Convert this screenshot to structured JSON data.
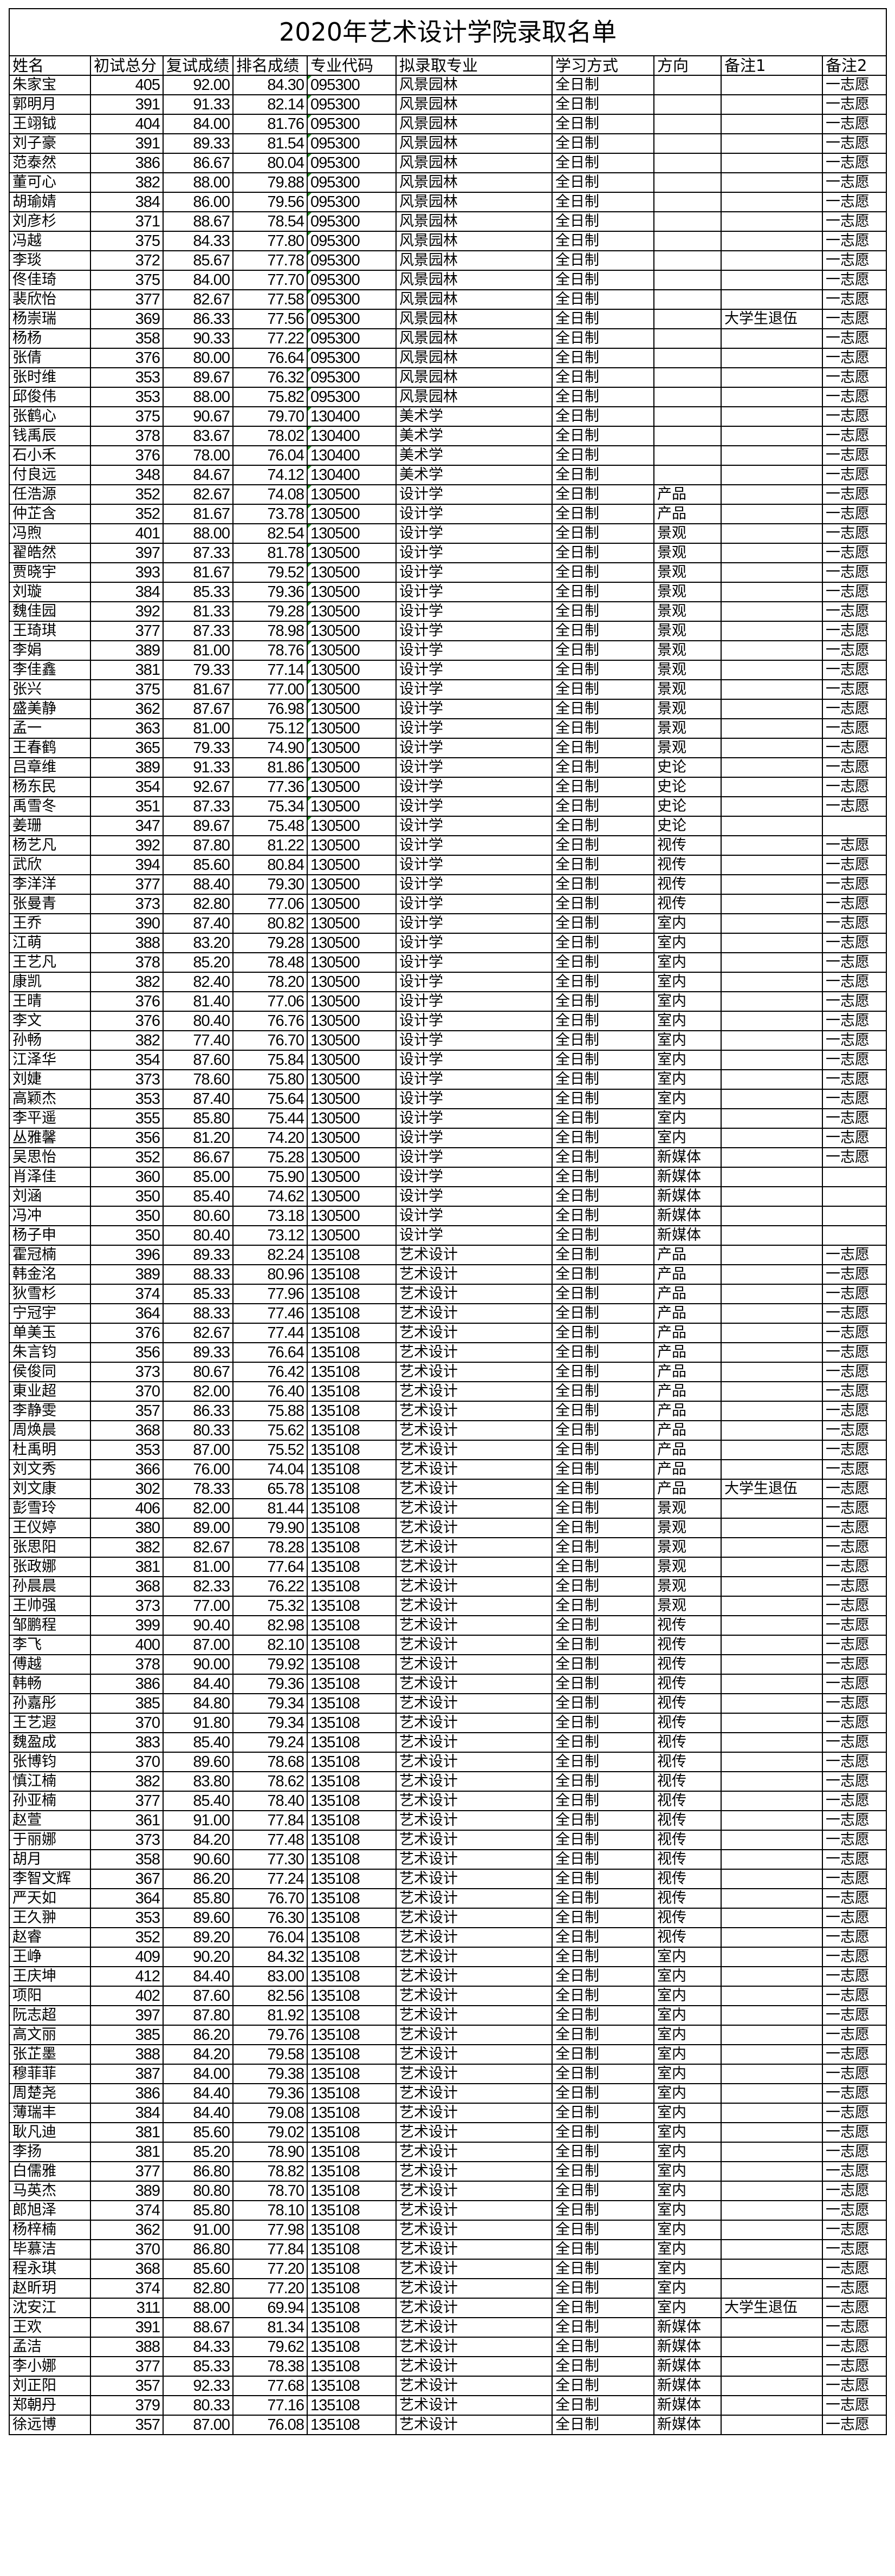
{
  "title": "2020年艺术设计学院录取名单",
  "columns": [
    "姓名",
    "初试总分",
    "复试成绩",
    "排名成绩",
    "专业代码",
    "拟录取专业",
    "学习方式",
    "方向",
    "备注1",
    "备注2"
  ],
  "rows": [
    [
      "朱家宝",
      "405",
      "92.00",
      "84.30",
      "095300",
      "风景园林",
      "全日制",
      "",
      "",
      "一志愿"
    ],
    [
      "郭明月",
      "391",
      "91.33",
      "82.14",
      "095300",
      "风景园林",
      "全日制",
      "",
      "",
      "一志愿"
    ],
    [
      "王翊钺",
      "404",
      "84.00",
      "81.76",
      "095300",
      "风景园林",
      "全日制",
      "",
      "",
      "一志愿"
    ],
    [
      "刘子豪",
      "391",
      "89.33",
      "81.54",
      "095300",
      "风景园林",
      "全日制",
      "",
      "",
      "一志愿"
    ],
    [
      "范泰然",
      "386",
      "86.67",
      "80.04",
      "095300",
      "风景园林",
      "全日制",
      "",
      "",
      "一志愿"
    ],
    [
      "董可心",
      "382",
      "88.00",
      "79.88",
      "095300",
      "风景园林",
      "全日制",
      "",
      "",
      "一志愿"
    ],
    [
      "胡瑜婧",
      "384",
      "86.00",
      "79.56",
      "095300",
      "风景园林",
      "全日制",
      "",
      "",
      "一志愿"
    ],
    [
      "刘彦杉",
      "371",
      "88.67",
      "78.54",
      "095300",
      "风景园林",
      "全日制",
      "",
      "",
      "一志愿"
    ],
    [
      "冯越",
      "375",
      "84.33",
      "77.80",
      "095300",
      "风景园林",
      "全日制",
      "",
      "",
      "一志愿"
    ],
    [
      "李琰",
      "372",
      "85.67",
      "77.78",
      "095300",
      "风景园林",
      "全日制",
      "",
      "",
      "一志愿"
    ],
    [
      "佟佳琦",
      "375",
      "84.00",
      "77.70",
      "095300",
      "风景园林",
      "全日制",
      "",
      "",
      "一志愿"
    ],
    [
      "裴欣怡",
      "377",
      "82.67",
      "77.58",
      "095300",
      "风景园林",
      "全日制",
      "",
      "",
      "一志愿"
    ],
    [
      "杨崇瑞",
      "369",
      "86.33",
      "77.56",
      "095300",
      "风景园林",
      "全日制",
      "",
      "大学生退伍",
      "一志愿"
    ],
    [
      "杨杨",
      "358",
      "90.33",
      "77.22",
      "095300",
      "风景园林",
      "全日制",
      "",
      "",
      "一志愿"
    ],
    [
      "张倩",
      "376",
      "80.00",
      "76.64",
      "095300",
      "风景园林",
      "全日制",
      "",
      "",
      "一志愿"
    ],
    [
      "张时维",
      "353",
      "89.67",
      "76.32",
      "095300",
      "风景园林",
      "全日制",
      "",
      "",
      "一志愿"
    ],
    [
      "邱俊伟",
      "353",
      "88.00",
      "75.82",
      "095300",
      "风景园林",
      "全日制",
      "",
      "",
      "一志愿"
    ],
    [
      "张鹤心",
      "375",
      "90.67",
      "79.70",
      "130400",
      "美术学",
      "全日制",
      "",
      "",
      "一志愿"
    ],
    [
      "钱禹辰",
      "378",
      "83.67",
      "78.02",
      "130400",
      "美术学",
      "全日制",
      "",
      "",
      "一志愿"
    ],
    [
      "石小禾",
      "376",
      "78.00",
      "76.04",
      "130400",
      "美术学",
      "全日制",
      "",
      "",
      "一志愿"
    ],
    [
      "付良远",
      "348",
      "84.67",
      "74.12",
      "130400",
      "美术学",
      "全日制",
      "",
      "",
      "一志愿"
    ],
    [
      "任浩源",
      "352",
      "82.67",
      "74.08",
      "130500",
      "设计学",
      "全日制",
      "产品",
      "",
      "一志愿"
    ],
    [
      "仲芷含",
      "352",
      "81.67",
      "73.78",
      "130500",
      "设计学",
      "全日制",
      "产品",
      "",
      "一志愿"
    ],
    [
      "冯煦",
      "401",
      "88.00",
      "82.54",
      "130500",
      "设计学",
      "全日制",
      "景观",
      "",
      "一志愿"
    ],
    [
      "翟皓然",
      "397",
      "87.33",
      "81.78",
      "130500",
      "设计学",
      "全日制",
      "景观",
      "",
      "一志愿"
    ],
    [
      "贾晓宇",
      "393",
      "81.67",
      "79.52",
      "130500",
      "设计学",
      "全日制",
      "景观",
      "",
      "一志愿"
    ],
    [
      "刘璇",
      "384",
      "85.33",
      "79.36",
      "130500",
      "设计学",
      "全日制",
      "景观",
      "",
      "一志愿"
    ],
    [
      "魏佳园",
      "392",
      "81.33",
      "79.28",
      "130500",
      "设计学",
      "全日制",
      "景观",
      "",
      "一志愿"
    ],
    [
      "王琦琪",
      "377",
      "87.33",
      "78.98",
      "130500",
      "设计学",
      "全日制",
      "景观",
      "",
      "一志愿"
    ],
    [
      "李娟",
      "389",
      "81.00",
      "78.76",
      "130500",
      "设计学",
      "全日制",
      "景观",
      "",
      "一志愿"
    ],
    [
      "李佳鑫",
      "381",
      "79.33",
      "77.14",
      "130500",
      "设计学",
      "全日制",
      "景观",
      "",
      "一志愿"
    ],
    [
      "张兴",
      "375",
      "81.67",
      "77.00",
      "130500",
      "设计学",
      "全日制",
      "景观",
      "",
      "一志愿"
    ],
    [
      "盛美静",
      "362",
      "87.67",
      "76.98",
      "130500",
      "设计学",
      "全日制",
      "景观",
      "",
      "一志愿"
    ],
    [
      "孟一",
      "363",
      "81.00",
      "75.12",
      "130500",
      "设计学",
      "全日制",
      "景观",
      "",
      "一志愿"
    ],
    [
      "王春鹤",
      "365",
      "79.33",
      "74.90",
      "130500",
      "设计学",
      "全日制",
      "景观",
      "",
      "一志愿"
    ],
    [
      "吕章维",
      "389",
      "91.33",
      "81.86",
      "130500",
      "设计学",
      "全日制",
      "史论",
      "",
      "一志愿"
    ],
    [
      "杨东民",
      "354",
      "92.67",
      "77.36",
      "130500",
      "设计学",
      "全日制",
      "史论",
      "",
      "一志愿"
    ],
    [
      "禹雪冬",
      "351",
      "87.33",
      "75.34",
      "130500",
      "设计学",
      "全日制",
      "史论",
      "",
      "一志愿"
    ],
    [
      "姜珊",
      "347",
      "89.67",
      "75.48",
      "130500",
      "设计学",
      "全日制",
      "史论",
      "",
      ""
    ],
    [
      "杨艺凡",
      "392",
      "87.80",
      "81.22",
      "130500",
      "设计学",
      "全日制",
      "视传",
      "",
      "一志愿"
    ],
    [
      "武欣",
      "394",
      "85.60",
      "80.84",
      "130500",
      "设计学",
      "全日制",
      "视传",
      "",
      "一志愿"
    ],
    [
      "李洋洋",
      "377",
      "88.40",
      "79.30",
      "130500",
      "设计学",
      "全日制",
      "视传",
      "",
      "一志愿"
    ],
    [
      "张曼青",
      "373",
      "82.80",
      "77.06",
      "130500",
      "设计学",
      "全日制",
      "视传",
      "",
      "一志愿"
    ],
    [
      "王乔",
      "390",
      "87.40",
      "80.82",
      "130500",
      "设计学",
      "全日制",
      "室内",
      "",
      "一志愿"
    ],
    [
      "江萌",
      "388",
      "83.20",
      "79.28",
      "130500",
      "设计学",
      "全日制",
      "室内",
      "",
      "一志愿"
    ],
    [
      "王艺凡",
      "378",
      "85.20",
      "78.48",
      "130500",
      "设计学",
      "全日制",
      "室内",
      "",
      "一志愿"
    ],
    [
      "康凯",
      "382",
      "82.40",
      "78.20",
      "130500",
      "设计学",
      "全日制",
      "室内",
      "",
      "一志愿"
    ],
    [
      "王晴",
      "376",
      "81.40",
      "77.06",
      "130500",
      "设计学",
      "全日制",
      "室内",
      "",
      "一志愿"
    ],
    [
      "李文",
      "376",
      "80.40",
      "76.76",
      "130500",
      "设计学",
      "全日制",
      "室内",
      "",
      "一志愿"
    ],
    [
      "孙畅",
      "382",
      "77.40",
      "76.70",
      "130500",
      "设计学",
      "全日制",
      "室内",
      "",
      "一志愿"
    ],
    [
      "江泽华",
      "354",
      "87.60",
      "75.84",
      "130500",
      "设计学",
      "全日制",
      "室内",
      "",
      "一志愿"
    ],
    [
      "刘婕",
      "373",
      "78.60",
      "75.80",
      "130500",
      "设计学",
      "全日制",
      "室内",
      "",
      "一志愿"
    ],
    [
      "高颖杰",
      "353",
      "87.40",
      "75.64",
      "130500",
      "设计学",
      "全日制",
      "室内",
      "",
      "一志愿"
    ],
    [
      "李平遥",
      "355",
      "85.80",
      "75.44",
      "130500",
      "设计学",
      "全日制",
      "室内",
      "",
      "一志愿"
    ],
    [
      "丛雅馨",
      "356",
      "81.20",
      "74.20",
      "130500",
      "设计学",
      "全日制",
      "室内",
      "",
      "一志愿"
    ],
    [
      "吴思怡",
      "352",
      "86.67",
      "75.28",
      "130500",
      "设计学",
      "全日制",
      "新媒体",
      "",
      "一志愿"
    ],
    [
      "肖泽佳",
      "360",
      "85.00",
      "75.90",
      "130500",
      "设计学",
      "全日制",
      "新媒体",
      "",
      ""
    ],
    [
      "刘涵",
      "350",
      "85.40",
      "74.62",
      "130500",
      "设计学",
      "全日制",
      "新媒体",
      "",
      ""
    ],
    [
      "冯冲",
      "350",
      "80.60",
      "73.18",
      "130500",
      "设计学",
      "全日制",
      "新媒体",
      "",
      ""
    ],
    [
      "杨子申",
      "350",
      "80.40",
      "73.12",
      "130500",
      "设计学",
      "全日制",
      "新媒体",
      "",
      ""
    ],
    [
      "霍冠楠",
      "396",
      "89.33",
      "82.24",
      "135108",
      "艺术设计",
      "全日制",
      "产品",
      "",
      "一志愿"
    ],
    [
      "韩金洺",
      "389",
      "88.33",
      "80.96",
      "135108",
      "艺术设计",
      "全日制",
      "产品",
      "",
      "一志愿"
    ],
    [
      "狄雪杉",
      "374",
      "85.33",
      "77.96",
      "135108",
      "艺术设计",
      "全日制",
      "产品",
      "",
      "一志愿"
    ],
    [
      "宁冠宇",
      "364",
      "88.33",
      "77.46",
      "135108",
      "艺术设计",
      "全日制",
      "产品",
      "",
      "一志愿"
    ],
    [
      "单美玉",
      "376",
      "82.67",
      "77.44",
      "135108",
      "艺术设计",
      "全日制",
      "产品",
      "",
      "一志愿"
    ],
    [
      "朱言钧",
      "356",
      "89.33",
      "76.64",
      "135108",
      "艺术设计",
      "全日制",
      "产品",
      "",
      "一志愿"
    ],
    [
      "侯俊同",
      "373",
      "80.67",
      "76.42",
      "135108",
      "艺术设计",
      "全日制",
      "产品",
      "",
      "一志愿"
    ],
    [
      "東业超",
      "370",
      "82.00",
      "76.40",
      "135108",
      "艺术设计",
      "全日制",
      "产品",
      "",
      "一志愿"
    ],
    [
      "李静雯",
      "357",
      "86.33",
      "75.88",
      "135108",
      "艺术设计",
      "全日制",
      "产品",
      "",
      "一志愿"
    ],
    [
      "周焕晨",
      "368",
      "80.33",
      "75.62",
      "135108",
      "艺术设计",
      "全日制",
      "产品",
      "",
      "一志愿"
    ],
    [
      "杜禹明",
      "353",
      "87.00",
      "75.52",
      "135108",
      "艺术设计",
      "全日制",
      "产品",
      "",
      "一志愿"
    ],
    [
      "刘文秀",
      "366",
      "76.00",
      "74.04",
      "135108",
      "艺术设计",
      "全日制",
      "产品",
      "",
      "一志愿"
    ],
    [
      "刘文康",
      "302",
      "78.33",
      "65.78",
      "135108",
      "艺术设计",
      "全日制",
      "产品",
      "大学生退伍",
      "一志愿"
    ],
    [
      "彭雪玲",
      "406",
      "82.00",
      "81.44",
      "135108",
      "艺术设计",
      "全日制",
      "景观",
      "",
      "一志愿"
    ],
    [
      "王仪婷",
      "380",
      "89.00",
      "79.90",
      "135108",
      "艺术设计",
      "全日制",
      "景观",
      "",
      "一志愿"
    ],
    [
      "张思阳",
      "382",
      "82.67",
      "78.28",
      "135108",
      "艺术设计",
      "全日制",
      "景观",
      "",
      "一志愿"
    ],
    [
      "张政娜",
      "381",
      "81.00",
      "77.64",
      "135108",
      "艺术设计",
      "全日制",
      "景观",
      "",
      "一志愿"
    ],
    [
      "孙晨晨",
      "368",
      "82.33",
      "76.22",
      "135108",
      "艺术设计",
      "全日制",
      "景观",
      "",
      "一志愿"
    ],
    [
      "王帅强",
      "373",
      "77.00",
      "75.32",
      "135108",
      "艺术设计",
      "全日制",
      "景观",
      "",
      "一志愿"
    ],
    [
      "邹鹏程",
      "399",
      "90.40",
      "82.98",
      "135108",
      "艺术设计",
      "全日制",
      "视传",
      "",
      "一志愿"
    ],
    [
      "李飞",
      "400",
      "87.00",
      "82.10",
      "135108",
      "艺术设计",
      "全日制",
      "视传",
      "",
      "一志愿"
    ],
    [
      "傅越",
      "378",
      "90.00",
      "79.92",
      "135108",
      "艺术设计",
      "全日制",
      "视传",
      "",
      "一志愿"
    ],
    [
      "韩畅",
      "386",
      "84.40",
      "79.36",
      "135108",
      "艺术设计",
      "全日制",
      "视传",
      "",
      "一志愿"
    ],
    [
      "孙嘉彤",
      "385",
      "84.80",
      "79.34",
      "135108",
      "艺术设计",
      "全日制",
      "视传",
      "",
      "一志愿"
    ],
    [
      "王艺遐",
      "370",
      "91.80",
      "79.34",
      "135108",
      "艺术设计",
      "全日制",
      "视传",
      "",
      "一志愿"
    ],
    [
      "魏盈成",
      "383",
      "85.40",
      "79.24",
      "135108",
      "艺术设计",
      "全日制",
      "视传",
      "",
      "一志愿"
    ],
    [
      "张博钧",
      "370",
      "89.60",
      "78.68",
      "135108",
      "艺术设计",
      "全日制",
      "视传",
      "",
      "一志愿"
    ],
    [
      "慎江楠",
      "382",
      "83.80",
      "78.62",
      "135108",
      "艺术设计",
      "全日制",
      "视传",
      "",
      "一志愿"
    ],
    [
      "孙亚楠",
      "377",
      "85.40",
      "78.40",
      "135108",
      "艺术设计",
      "全日制",
      "视传",
      "",
      "一志愿"
    ],
    [
      "赵萱",
      "361",
      "91.00",
      "77.84",
      "135108",
      "艺术设计",
      "全日制",
      "视传",
      "",
      "一志愿"
    ],
    [
      "于丽娜",
      "373",
      "84.20",
      "77.48",
      "135108",
      "艺术设计",
      "全日制",
      "视传",
      "",
      "一志愿"
    ],
    [
      "胡月",
      "358",
      "90.60",
      "77.30",
      "135108",
      "艺术设计",
      "全日制",
      "视传",
      "",
      "一志愿"
    ],
    [
      "李智文辉",
      "367",
      "86.20",
      "77.24",
      "135108",
      "艺术设计",
      "全日制",
      "视传",
      "",
      "一志愿"
    ],
    [
      "严天如",
      "364",
      "85.80",
      "76.70",
      "135108",
      "艺术设计",
      "全日制",
      "视传",
      "",
      "一志愿"
    ],
    [
      "王久翀",
      "353",
      "89.60",
      "76.30",
      "135108",
      "艺术设计",
      "全日制",
      "视传",
      "",
      "一志愿"
    ],
    [
      "赵睿",
      "352",
      "89.20",
      "76.04",
      "135108",
      "艺术设计",
      "全日制",
      "视传",
      "",
      "一志愿"
    ],
    [
      "王峥",
      "409",
      "90.20",
      "84.32",
      "135108",
      "艺术设计",
      "全日制",
      "室内",
      "",
      "一志愿"
    ],
    [
      "王庆坤",
      "412",
      "84.40",
      "83.00",
      "135108",
      "艺术设计",
      "全日制",
      "室内",
      "",
      "一志愿"
    ],
    [
      "项阳",
      "402",
      "87.60",
      "82.56",
      "135108",
      "艺术设计",
      "全日制",
      "室内",
      "",
      "一志愿"
    ],
    [
      "阮志超",
      "397",
      "87.80",
      "81.92",
      "135108",
      "艺术设计",
      "全日制",
      "室内",
      "",
      "一志愿"
    ],
    [
      "高文丽",
      "385",
      "86.20",
      "79.76",
      "135108",
      "艺术设计",
      "全日制",
      "室内",
      "",
      "一志愿"
    ],
    [
      "张芷墨",
      "388",
      "84.20",
      "79.58",
      "135108",
      "艺术设计",
      "全日制",
      "室内",
      "",
      "一志愿"
    ],
    [
      "穆菲菲",
      "387",
      "84.00",
      "79.38",
      "135108",
      "艺术设计",
      "全日制",
      "室内",
      "",
      "一志愿"
    ],
    [
      "周楚尧",
      "386",
      "84.40",
      "79.36",
      "135108",
      "艺术设计",
      "全日制",
      "室内",
      "",
      "一志愿"
    ],
    [
      "薄瑞丰",
      "384",
      "84.40",
      "79.08",
      "135108",
      "艺术设计",
      "全日制",
      "室内",
      "",
      "一志愿"
    ],
    [
      "耿凡迪",
      "381",
      "85.60",
      "79.02",
      "135108",
      "艺术设计",
      "全日制",
      "室内",
      "",
      "一志愿"
    ],
    [
      "李扬",
      "381",
      "85.20",
      "78.90",
      "135108",
      "艺术设计",
      "全日制",
      "室内",
      "",
      "一志愿"
    ],
    [
      "白儒雅",
      "377",
      "86.80",
      "78.82",
      "135108",
      "艺术设计",
      "全日制",
      "室内",
      "",
      "一志愿"
    ],
    [
      "马英杰",
      "389",
      "80.80",
      "78.70",
      "135108",
      "艺术设计",
      "全日制",
      "室内",
      "",
      "一志愿"
    ],
    [
      "郎旭泽",
      "374",
      "85.80",
      "78.10",
      "135108",
      "艺术设计",
      "全日制",
      "室内",
      "",
      "一志愿"
    ],
    [
      "杨梓楠",
      "362",
      "91.00",
      "77.98",
      "135108",
      "艺术设计",
      "全日制",
      "室内",
      "",
      "一志愿"
    ],
    [
      "毕慕洁",
      "370",
      "86.80",
      "77.84",
      "135108",
      "艺术设计",
      "全日制",
      "室内",
      "",
      "一志愿"
    ],
    [
      "程永琪",
      "368",
      "85.60",
      "77.20",
      "135108",
      "艺术设计",
      "全日制",
      "室内",
      "",
      "一志愿"
    ],
    [
      "赵昕玥",
      "374",
      "82.80",
      "77.20",
      "135108",
      "艺术设计",
      "全日制",
      "室内",
      "",
      "一志愿"
    ],
    [
      "沈安江",
      "311",
      "88.00",
      "69.94",
      "135108",
      "艺术设计",
      "全日制",
      "室内",
      "大学生退伍",
      "一志愿"
    ],
    [
      "王欢",
      "391",
      "88.67",
      "81.34",
      "135108",
      "艺术设计",
      "全日制",
      "新媒体",
      "",
      "一志愿"
    ],
    [
      "孟洁",
      "388",
      "84.33",
      "79.62",
      "135108",
      "艺术设计",
      "全日制",
      "新媒体",
      "",
      "一志愿"
    ],
    [
      "李小娜",
      "377",
      "85.33",
      "78.38",
      "135108",
      "艺术设计",
      "全日制",
      "新媒体",
      "",
      "一志愿"
    ],
    [
      "刘正阳",
      "357",
      "92.33",
      "77.68",
      "135108",
      "艺术设计",
      "全日制",
      "新媒体",
      "",
      "一志愿"
    ],
    [
      "郑朝丹",
      "379",
      "80.33",
      "77.16",
      "135108",
      "艺术设计",
      "全日制",
      "新媒体",
      "",
      "一志愿"
    ],
    [
      "徐远博",
      "357",
      "87.00",
      "76.08",
      "135108",
      "艺术设计",
      "全日制",
      "新媒体",
      "",
      "一志愿"
    ]
  ]
}
